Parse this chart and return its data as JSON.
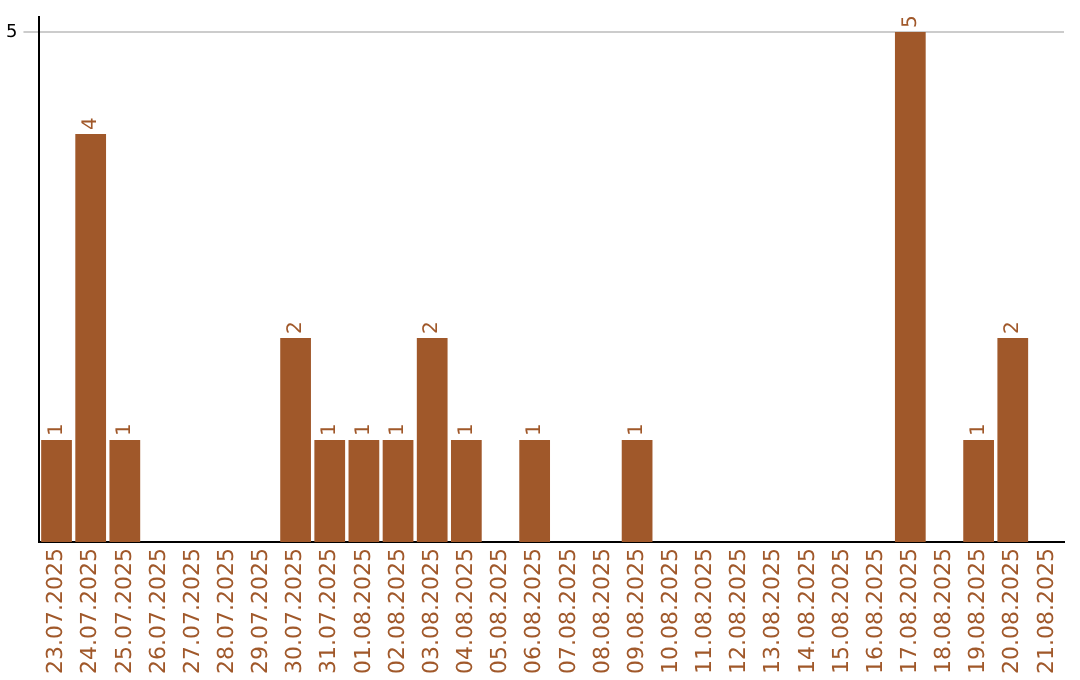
{
  "chart_data": {
    "type": "bar",
    "categories": [
      "23.07.2025",
      "24.07.2025",
      "25.07.2025",
      "26.07.2025",
      "27.07.2025",
      "28.07.2025",
      "29.07.2025",
      "30.07.2025",
      "31.07.2025",
      "01.08.2025",
      "02.08.2025",
      "03.08.2025",
      "04.08.2025",
      "05.08.2025",
      "06.08.2025",
      "07.08.2025",
      "08.08.2025",
      "09.08.2025",
      "10.08.2025",
      "11.08.2025",
      "12.08.2025",
      "13.08.2025",
      "14.08.2025",
      "15.08.2025",
      "16.08.2025",
      "17.08.2025",
      "18.08.2025",
      "19.08.2025",
      "20.08.2025",
      "21.08.2025"
    ],
    "values": [
      1,
      4,
      1,
      0,
      0,
      0,
      0,
      2,
      1,
      1,
      1,
      2,
      1,
      0,
      1,
      0,
      0,
      1,
      0,
      0,
      0,
      0,
      0,
      0,
      0,
      5,
      0,
      1,
      2,
      0
    ],
    "value_labels": [
      "1",
      "4",
      "1",
      null,
      null,
      null,
      null,
      "2",
      "1",
      "1",
      "1",
      "2",
      "1",
      null,
      "1",
      null,
      null,
      "1",
      null,
      null,
      null,
      null,
      null,
      null,
      null,
      "5",
      null,
      "1",
      "2",
      null
    ],
    "color": "#a0582a",
    "ylim": [
      0,
      5.15
    ],
    "yticks": [
      5
    ],
    "grid": "y",
    "legend": false
  }
}
